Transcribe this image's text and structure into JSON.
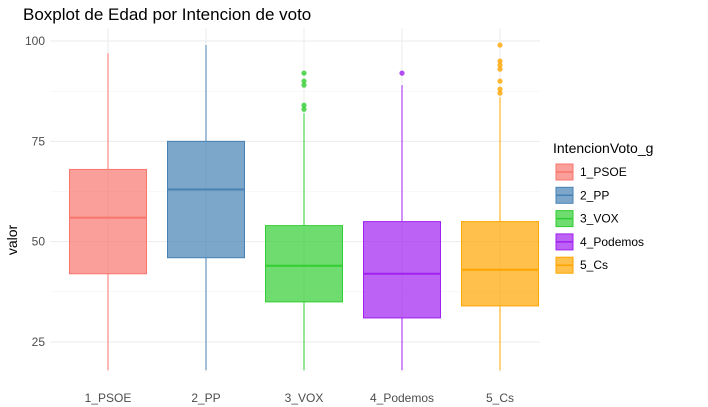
{
  "chart_data": {
    "type": "boxplot",
    "title": "Boxplot de Edad por Intencion de voto",
    "xlabel": "",
    "ylabel": "valor",
    "ylim": [
      17,
      102
    ],
    "yticks": [
      25,
      50,
      75,
      100
    ],
    "grid": true,
    "legend": {
      "title": "IntencionVoto_g",
      "position": "right"
    },
    "categories": [
      "1_PSOE",
      "2_PP",
      "3_VOX",
      "4_Podemos",
      "5_Cs"
    ],
    "series": [
      {
        "name": "1_PSOE",
        "color": "#F8766D",
        "min": 18,
        "q1": 42,
        "median": 56,
        "q3": 68,
        "max": 97,
        "outliers": []
      },
      {
        "name": "2_PP",
        "color": "#4682B4",
        "min": 18,
        "q1": 46,
        "median": 63,
        "q3": 75,
        "max": 99,
        "outliers": []
      },
      {
        "name": "3_VOX",
        "color": "#32CD32",
        "min": 18,
        "q1": 35,
        "median": 44,
        "q3": 54,
        "max": 82,
        "outliers": [
          83,
          84,
          89,
          90,
          92
        ]
      },
      {
        "name": "4_Podemos",
        "color": "#A020F0",
        "min": 18,
        "q1": 31,
        "median": 42,
        "q3": 55,
        "max": 89,
        "outliers": [
          92
        ]
      },
      {
        "name": "5_Cs",
        "color": "#FFA500",
        "min": 18,
        "q1": 34,
        "median": 43,
        "q3": 55,
        "max": 86,
        "outliers": [
          87,
          88,
          90,
          93,
          94,
          95,
          99
        ]
      }
    ]
  }
}
